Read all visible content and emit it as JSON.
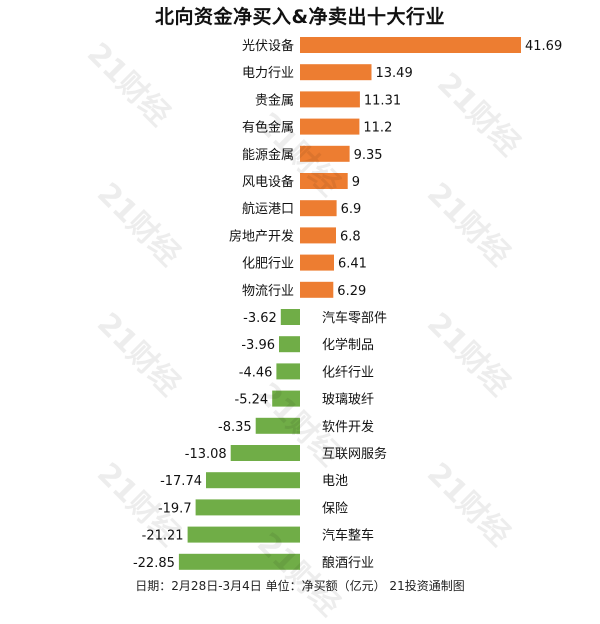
{
  "chart_data": {
    "type": "bar",
    "orientation": "horizontal",
    "title": "北向资金净买入&净卖出十大行业",
    "xlabel": "",
    "ylabel": "",
    "xlim": [
      -25,
      45
    ],
    "grid": false,
    "legend": "none",
    "colors": {
      "positive": "#ED7D31",
      "negative": "#70AD47"
    },
    "categories": [
      "光伏设备",
      "电力行业",
      "贵金属",
      "有色金属",
      "能源金属",
      "风电设备",
      "航运港口",
      "房地产开发",
      "化肥行业",
      "物流行业",
      "汽车零部件",
      "化学制品",
      "化纤行业",
      "玻璃玻纤",
      "软件开发",
      "互联网服务",
      "电池",
      "保险",
      "汽车整车",
      "酿酒行业"
    ],
    "values": [
      41.69,
      13.49,
      11.31,
      11.2,
      9.35,
      9,
      6.9,
      6.8,
      6.41,
      6.29,
      -3.62,
      -3.96,
      -4.46,
      -5.24,
      -8.35,
      -13.08,
      -17.74,
      -19.7,
      -21.21,
      -22.85
    ],
    "value_labels": [
      "41.69",
      "13.49",
      "11.31",
      "11.2",
      "9.35",
      "9",
      "6.9",
      "6.8",
      "6.41",
      "6.29",
      "-3.62",
      "-3.96",
      "-4.46",
      "-5.24",
      "-8.35",
      "-13.08",
      "-17.74",
      "-19.7",
      "-21.21",
      "-22.85"
    ]
  },
  "footer": {
    "note": "日期：2月28日-3月4日 单位：净买额（亿元） 21投资通制图"
  },
  "watermark": {
    "text": "21财经"
  }
}
